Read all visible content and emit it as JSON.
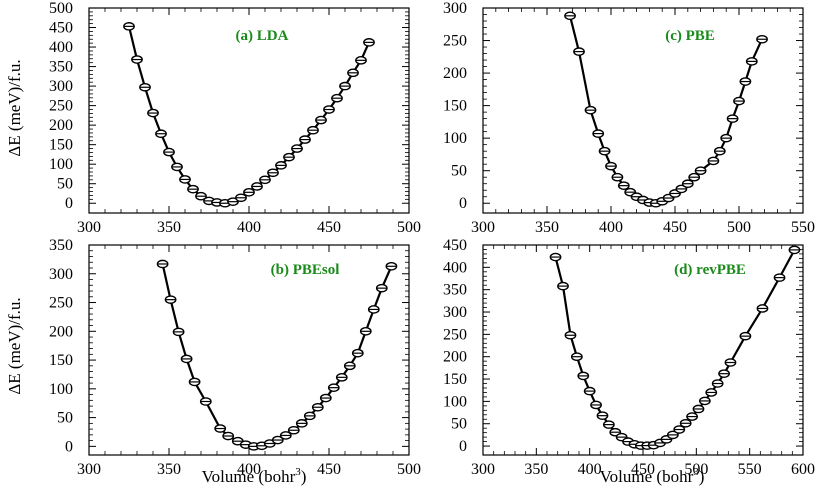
{
  "figure": {
    "ylabel": "ΔE (meV)/f.u.",
    "xlabel_main": "Volume (bohr",
    "xlabel_sup": "3",
    "xlabel_close": ")"
  },
  "colors": {
    "line": "#000000",
    "marker": "#000000",
    "title": "#1a8a1a"
  },
  "chart_data": [
    {
      "type": "line",
      "title": "(a) LDA",
      "xlabel": "",
      "ylabel": "ΔE (meV)/f.u.",
      "xlim": [
        300,
        500
      ],
      "ylim": [
        -25,
        500
      ],
      "xticks": [
        300,
        350,
        400,
        450,
        500
      ],
      "yticks": [
        0,
        50,
        100,
        150,
        200,
        250,
        300,
        350,
        400,
        450,
        500
      ],
      "x": [
        325,
        330,
        335,
        340,
        345,
        350,
        355,
        360,
        365,
        370,
        375,
        380,
        385,
        390,
        395,
        400,
        405,
        410,
        415,
        420,
        425,
        430,
        435,
        440,
        445,
        450,
        455,
        460,
        465,
        470,
        475
      ],
      "y": [
        453,
        368,
        297,
        231,
        178,
        131,
        93,
        61,
        36,
        18,
        6,
        2,
        0,
        4,
        14,
        28,
        43,
        60,
        78,
        97,
        118,
        140,
        163,
        187,
        213,
        240,
        269,
        300,
        334,
        366,
        412
      ]
    },
    {
      "type": "line",
      "title": "(c) PBE",
      "xlabel": "",
      "ylabel": "",
      "xlim": [
        300,
        550
      ],
      "ylim": [
        -15,
        300
      ],
      "xticks": [
        300,
        350,
        400,
        450,
        500,
        550
      ],
      "yticks": [
        0,
        50,
        100,
        150,
        200,
        250,
        300
      ],
      "x": [
        368,
        375,
        384,
        390,
        395,
        400,
        405,
        410,
        415,
        420,
        425,
        430,
        435,
        440,
        445,
        450,
        455,
        460,
        465,
        470,
        480,
        485,
        490,
        495,
        500,
        505,
        510,
        518
      ],
      "y": [
        288,
        233,
        143,
        107,
        80,
        57,
        40,
        27,
        17,
        10,
        5,
        1,
        0,
        3,
        8,
        15,
        22,
        30,
        40,
        50,
        65,
        80,
        100,
        130,
        157,
        187,
        218,
        252
      ]
    },
    {
      "type": "line",
      "title": "(b) PBEsol",
      "xlabel": "Volume (bohr³)",
      "ylabel": "ΔE (meV)/f.u.",
      "xlim": [
        300,
        500
      ],
      "ylim": [
        -15,
        350
      ],
      "xticks": [
        300,
        350,
        400,
        450,
        500
      ],
      "yticks": [
        0,
        50,
        100,
        150,
        200,
        250,
        300,
        350
      ],
      "x": [
        346,
        351,
        356,
        361,
        366,
        373,
        382,
        387,
        393,
        398,
        403,
        408,
        413,
        418,
        423,
        428,
        433,
        438,
        443,
        448,
        453,
        458,
        463,
        468,
        473,
        478,
        483,
        489
      ],
      "y": [
        317,
        255,
        199,
        152,
        112,
        78,
        31,
        18,
        9,
        3,
        0,
        1,
        5,
        11,
        19,
        28,
        40,
        53,
        68,
        84,
        102,
        120,
        140,
        162,
        200,
        238,
        275,
        313
      ]
    },
    {
      "type": "line",
      "title": "(d) revPBE",
      "xlabel": "Volume (bohr³)",
      "ylabel": "",
      "xlim": [
        300,
        600
      ],
      "ylim": [
        -20,
        450
      ],
      "xticks": [
        300,
        350,
        400,
        450,
        500,
        550,
        600
      ],
      "yticks": [
        0,
        50,
        100,
        150,
        200,
        250,
        300,
        350,
        400,
        450
      ],
      "x": [
        368,
        375,
        382,
        388,
        394,
        400,
        406,
        412,
        418,
        424,
        430,
        436,
        442,
        448,
        454,
        460,
        466,
        472,
        478,
        484,
        490,
        496,
        502,
        508,
        514,
        520,
        526,
        532,
        546,
        562,
        578,
        592
      ],
      "y": [
        423,
        358,
        248,
        200,
        157,
        123,
        92,
        68,
        48,
        31,
        20,
        10,
        4,
        1,
        1,
        2,
        7,
        15,
        25,
        37,
        51,
        66,
        83,
        101,
        120,
        140,
        162,
        187,
        246,
        308,
        377,
        439
      ]
    }
  ]
}
